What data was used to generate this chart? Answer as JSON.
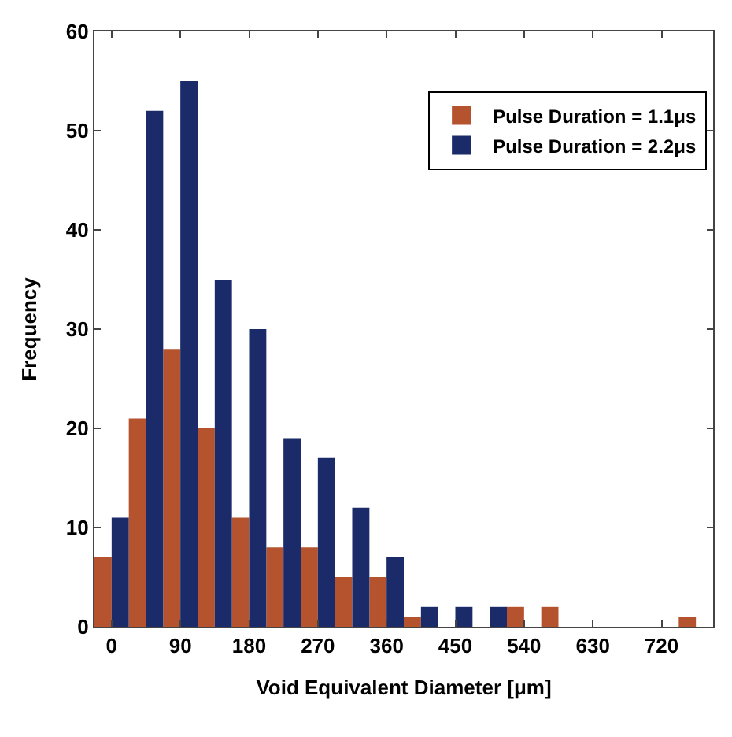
{
  "chart_data": {
    "type": "bar",
    "xlabel": "Void Equivalent Diameter [μm]",
    "ylabel": "Frequency",
    "x": [
      0,
      45,
      90,
      135,
      180,
      225,
      270,
      315,
      360,
      405,
      450,
      495,
      540,
      585,
      630,
      675,
      720,
      765
    ],
    "series": [
      {
        "name": "Pulse Duration = 1.1μs",
        "color": "#b4532e",
        "values": [
          7,
          21,
          28,
          20,
          11,
          8,
          8,
          5,
          5,
          1,
          0,
          0,
          2,
          2,
          0,
          0,
          0,
          1
        ]
      },
      {
        "name": "Pulse Duration = 2.2μs",
        "color": "#1b2a68",
        "values": [
          11,
          52,
          55,
          35,
          30,
          19,
          17,
          12,
          7,
          2,
          2,
          2,
          0,
          0,
          0,
          0,
          0,
          0
        ]
      }
    ],
    "xlim": [
      -22.5,
      787.5
    ],
    "xticks": [
      0,
      90,
      180,
      270,
      360,
      450,
      540,
      630,
      720
    ],
    "ylim": [
      0,
      60
    ],
    "yticks": [
      0,
      10,
      20,
      30,
      40,
      50,
      60
    ],
    "legend": "top right"
  }
}
